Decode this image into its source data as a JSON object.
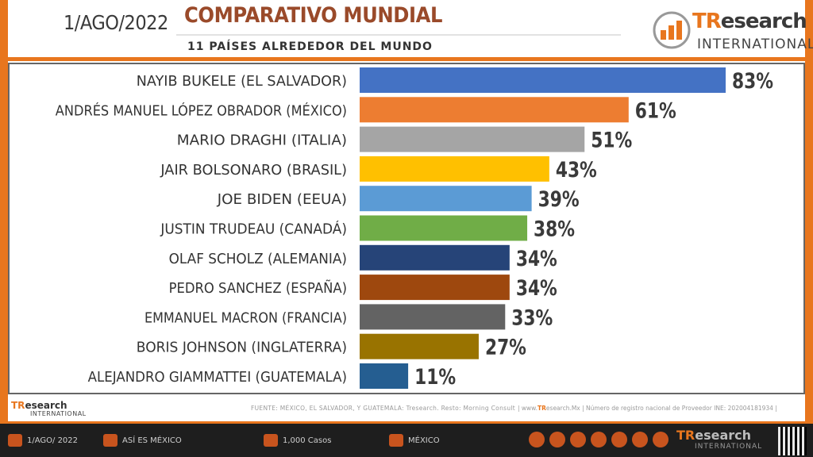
{
  "header": {
    "date": "1/AGO/2022",
    "title": "COMPARATIVO MUNDIAL",
    "subtitle": "11 PAÍSES ALREDEDOR DEL MUNDO",
    "logo_tr": "TR",
    "logo_rest": "esearch",
    "logo_intl": "INTERNATIONAL"
  },
  "chart_data": {
    "type": "bar",
    "orientation": "horizontal",
    "categories": [
      "NAYIB BUKELE (EL SALVADOR)",
      "ANDRÉS MANUEL LÓPEZ OBRADOR (MÉXICO)",
      "MARIO DRAGHI (ITALIA)",
      "JAIR BOLSONARO (BRASIL)",
      "JOE BIDEN (EEUA)",
      "JUSTIN TRUDEAU (CANADÁ)",
      "OLAF SCHOLZ (ALEMANIA)",
      "PEDRO SANCHEZ (ESPAÑA)",
      "EMMANUEL MACRON (FRANCIA)",
      "BORIS JOHNSON (INGLATERRA)",
      "ALEJANDRO GIAMMATTEI (GUATEMALA)"
    ],
    "values": [
      83,
      61,
      51,
      43,
      39,
      38,
      34,
      34,
      33,
      27,
      11
    ],
    "value_labels": [
      "83%",
      "61%",
      "51%",
      "43%",
      "39%",
      "38%",
      "34%",
      "34%",
      "33%",
      "27%",
      "11%"
    ],
    "colors": [
      "#4472c4",
      "#ed7d31",
      "#a5a5a5",
      "#ffc000",
      "#5b9bd5",
      "#70ad47",
      "#264478",
      "#9e480e",
      "#636363",
      "#997300",
      "#255e91"
    ],
    "xlim": [
      0,
      100
    ]
  },
  "source_row": {
    "mini_logo_tr": "TR",
    "mini_logo_rest": "esearch",
    "mini_intl": "INTERNATIONAL",
    "source": "FUENTE: MÉXICO, EL SALVADOR, Y GUATEMALA: Tresearch. Resto: Morning Consult",
    "reg_prefix": "| www.",
    "reg_tr": "TR",
    "reg_rest": "esearch.Mx | Número de registro nacional de Proveedor INE: 202004181934 |"
  },
  "footer": {
    "date": "1/AGO/ 2022",
    "section": "ASÍ ES MÉXICO",
    "cases": "1,000 Casos",
    "country": "MÉXICO",
    "logo_tr": "TR",
    "logo_rest": "esearch",
    "logo_intl": "INTERNATIONAL"
  }
}
